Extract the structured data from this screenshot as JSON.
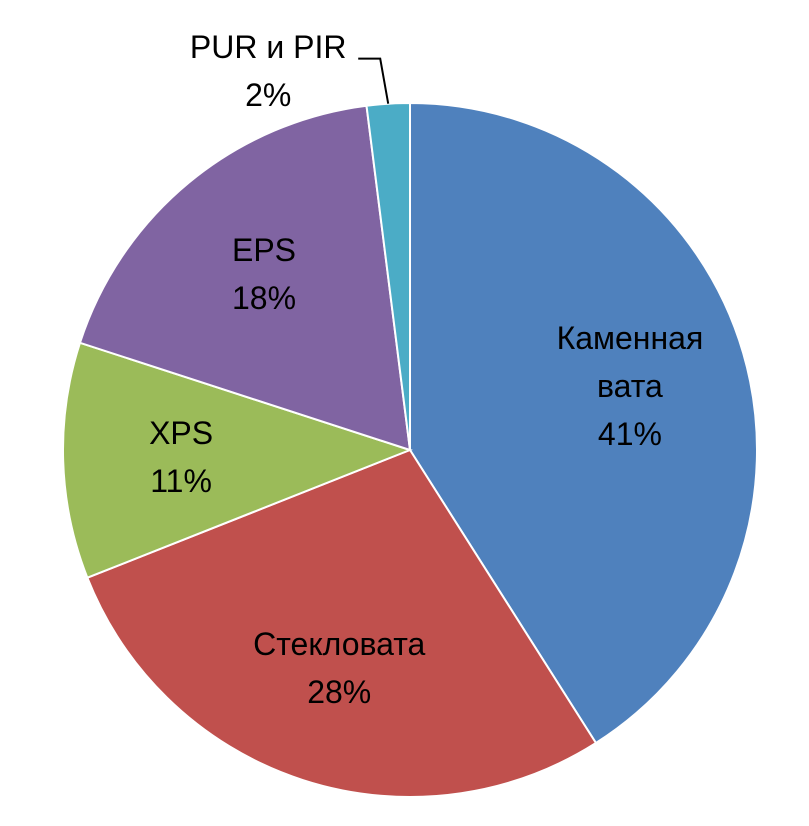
{
  "chart_data": {
    "type": "pie",
    "categories": [
      "Каменная вата",
      "Стекловата",
      "XPS",
      "EPS",
      "PUR и PIR"
    ],
    "values": [
      41,
      28,
      11,
      18,
      2
    ],
    "value_labels": [
      "41%",
      "28%",
      "11%",
      "18%",
      "2%"
    ],
    "colors": [
      "#4f81bd",
      "#c0504d",
      "#9bbb59",
      "#8064a2",
      "#4bacc6"
    ]
  }
}
